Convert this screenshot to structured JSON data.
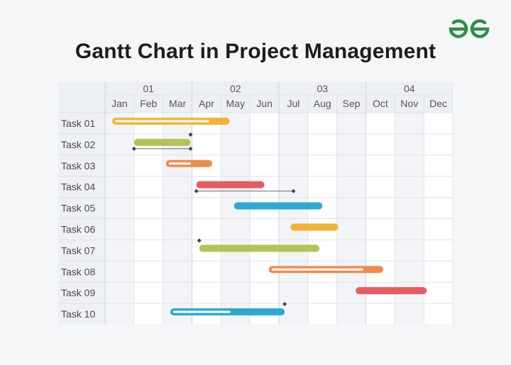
{
  "title": "Gantt Chart in Project Management",
  "brand_color": "#2f8d46",
  "chart_data": {
    "type": "gantt",
    "quarters": [
      "01",
      "02",
      "03",
      "04"
    ],
    "months": [
      "Jan",
      "Feb",
      "Mar",
      "Apr",
      "May",
      "Jun",
      "Jul",
      "Aug",
      "Sep",
      "Oct",
      "Nov",
      "Dec"
    ],
    "tasks": [
      {
        "label": "Task 01",
        "start": 0.25,
        "end": 4.3,
        "progress": 0.85,
        "color": "#f5b335",
        "style": "progress"
      },
      {
        "label": "Task 02",
        "start": 1.0,
        "end": 2.95,
        "color": "#b5c257",
        "style": "solid",
        "dependency": {
          "from": 1.0,
          "to": 2.95
        }
      },
      {
        "label": "Task 03",
        "start": 2.1,
        "end": 3.7,
        "progress": 0.6,
        "color": "#f08b4e",
        "style": "progress"
      },
      {
        "label": "Task 04",
        "start": 3.15,
        "end": 5.5,
        "color": "#e85b63",
        "style": "solid",
        "dependency": {
          "from": 3.15,
          "to": 6.5
        }
      },
      {
        "label": "Task 05",
        "start": 4.45,
        "end": 7.5,
        "color": "#2fa8d4",
        "style": "solid"
      },
      {
        "label": "Task 06",
        "start": 6.4,
        "end": 8.05,
        "color": "#f5b335",
        "style": "solid"
      },
      {
        "label": "Task 07",
        "start": 3.25,
        "end": 7.4,
        "color": "#b5c257",
        "style": "solid",
        "milestone": 3.25
      },
      {
        "label": "Task 08",
        "start": 5.65,
        "end": 9.6,
        "progress": 0.85,
        "color": "#f08b4e",
        "style": "progress"
      },
      {
        "label": "Task 09",
        "start": 8.65,
        "end": 11.1,
        "color": "#e85b63",
        "style": "solid"
      },
      {
        "label": "Task 10",
        "start": 2.25,
        "end": 6.2,
        "progress": 0.55,
        "color": "#2fa8d4",
        "style": "progress",
        "milestone": 6.2
      }
    ],
    "dependency_color": "#6b6b6b"
  }
}
